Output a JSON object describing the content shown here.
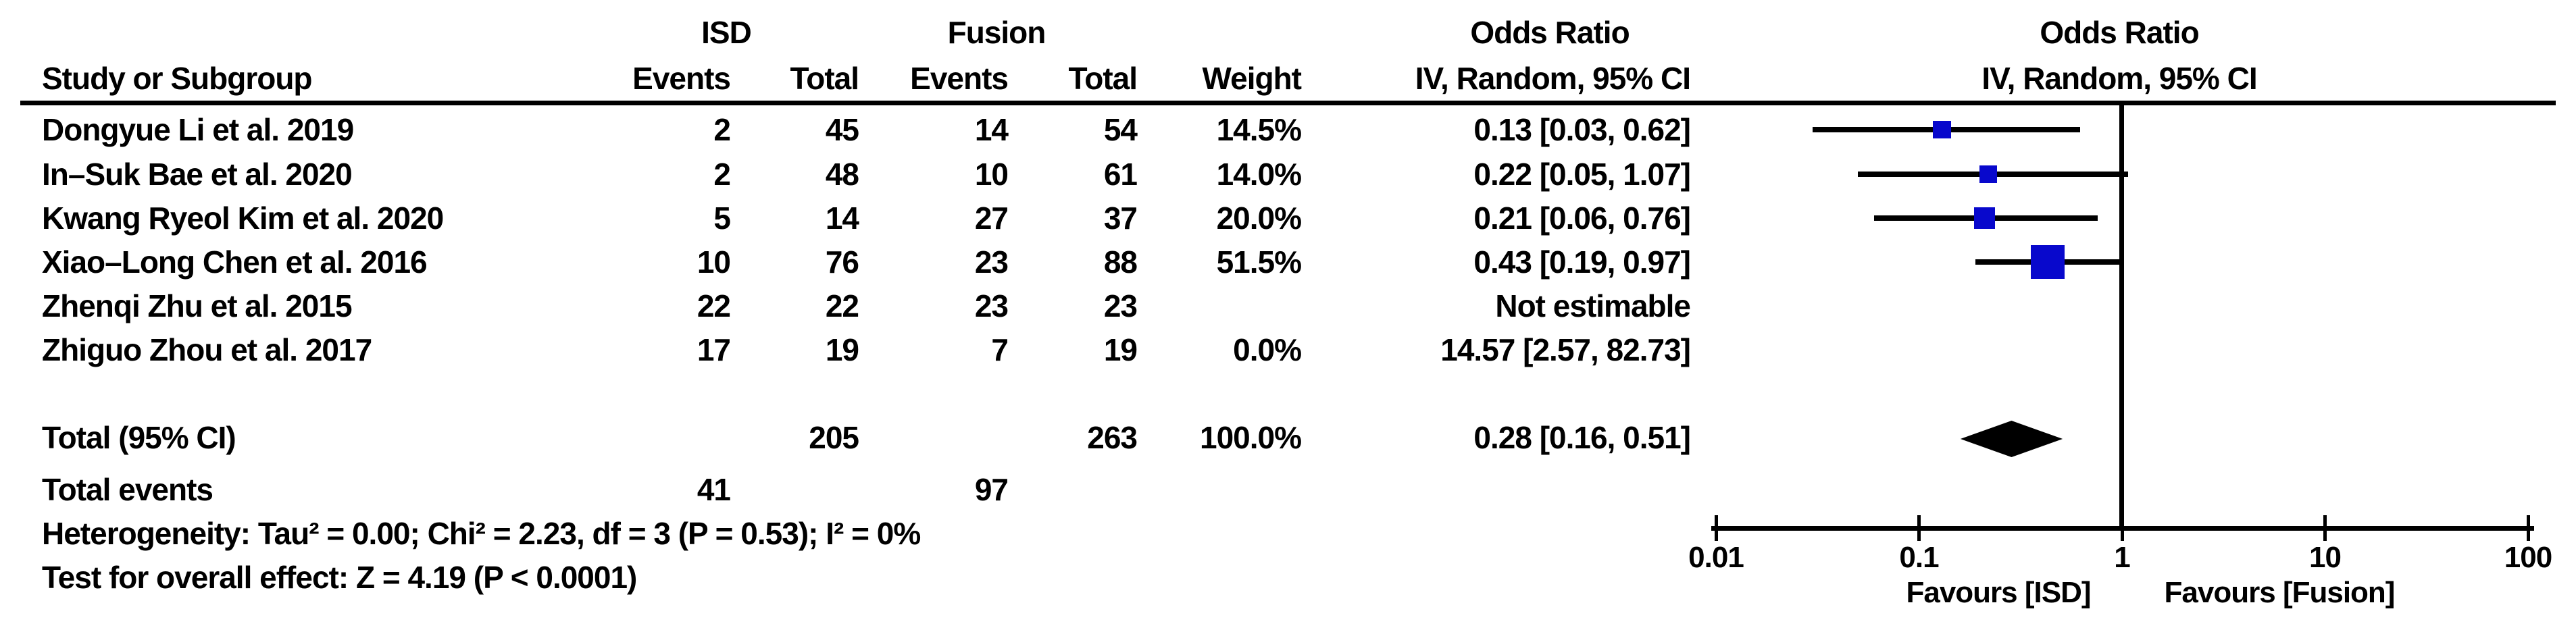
{
  "table": {
    "group_headers": {
      "isd": "ISD",
      "fusion": "Fusion",
      "odds_ratio": "Odds Ratio"
    },
    "col_headers": {
      "study": "Study or Subgroup",
      "events": "Events",
      "total": "Total",
      "weight": "Weight",
      "ivci": "IV, Random, 95% CI"
    },
    "plot_headers": {
      "odds_ratio": "Odds Ratio",
      "ivci": "IV, Random, 95% CI"
    }
  },
  "totals": {
    "label": "Total (95% CI)",
    "isd_total": "205",
    "fusion_total": "263",
    "weight": "100.0%",
    "or_text": "0.28 [0.16, 0.51]",
    "events_label": "Total events",
    "isd_events": "41",
    "fusion_events": "97"
  },
  "footer": {
    "heterogeneity": "Heterogeneity: Tau² = 0.00; Chi² = 2.23, df = 3 (P = 0.53); I² = 0%",
    "overall_effect": "Test for overall effect: Z = 4.19 (P < 0.0001)"
  },
  "chart_data": {
    "type": "forest",
    "effect_measure": "Odds Ratio, IV, Random, 95% CI",
    "x_scale": "log10",
    "x_range": [
      0.01,
      100
    ],
    "x_ticks": [
      0.01,
      0.1,
      1,
      10,
      100
    ],
    "x_tick_labels": [
      "0.01",
      "0.1",
      "1",
      "10",
      "100"
    ],
    "null_line": 1,
    "favours_left": "Favours [ISD]",
    "favours_right": "Favours [Fusion]",
    "marker_color": "#0808CC",
    "line_color": "#000000",
    "studies": [
      {
        "study": "Dongyue Li et al. 2019",
        "isd_events": 2,
        "isd_total": 45,
        "fusion_events": 14,
        "fusion_total": 54,
        "weight": "14.5%",
        "weight_pct": 14.5,
        "or": 0.13,
        "ci_low": 0.03,
        "ci_high": 0.62,
        "or_text": "0.13 [0.03, 0.62]",
        "plotted": true
      },
      {
        "study": "In–Suk Bae et al. 2020",
        "isd_events": 2,
        "isd_total": 48,
        "fusion_events": 10,
        "fusion_total": 61,
        "weight": "14.0%",
        "weight_pct": 14.0,
        "or": 0.22,
        "ci_low": 0.05,
        "ci_high": 1.07,
        "or_text": "0.22 [0.05, 1.07]",
        "plotted": true
      },
      {
        "study": "Kwang Ryeol Kim et al. 2020",
        "isd_events": 5,
        "isd_total": 14,
        "fusion_events": 27,
        "fusion_total": 37,
        "weight": "20.0%",
        "weight_pct": 20.0,
        "or": 0.21,
        "ci_low": 0.06,
        "ci_high": 0.76,
        "or_text": "0.21 [0.06, 0.76]",
        "plotted": true
      },
      {
        "study": "Xiao–Long Chen et al. 2016",
        "isd_events": 10,
        "isd_total": 76,
        "fusion_events": 23,
        "fusion_total": 88,
        "weight": "51.5%",
        "weight_pct": 51.5,
        "or": 0.43,
        "ci_low": 0.19,
        "ci_high": 0.97,
        "or_text": "0.43 [0.19, 0.97]",
        "plotted": true
      },
      {
        "study": "Zhenqi Zhu et al. 2015",
        "isd_events": 22,
        "isd_total": 22,
        "fusion_events": 23,
        "fusion_total": 23,
        "weight": "",
        "weight_pct": 0,
        "or": null,
        "ci_low": null,
        "ci_high": null,
        "or_text": "Not estimable",
        "plotted": false
      },
      {
        "study": "Zhiguo Zhou et al. 2017",
        "isd_events": 17,
        "isd_total": 19,
        "fusion_events": 7,
        "fusion_total": 19,
        "weight": "0.0%",
        "weight_pct": 0,
        "or": 14.57,
        "ci_low": 2.57,
        "ci_high": 82.73,
        "or_text": "14.57 [2.57, 82.73]",
        "plotted": false
      }
    ],
    "total": {
      "or": 0.28,
      "ci_low": 0.16,
      "ci_high": 0.51
    }
  }
}
